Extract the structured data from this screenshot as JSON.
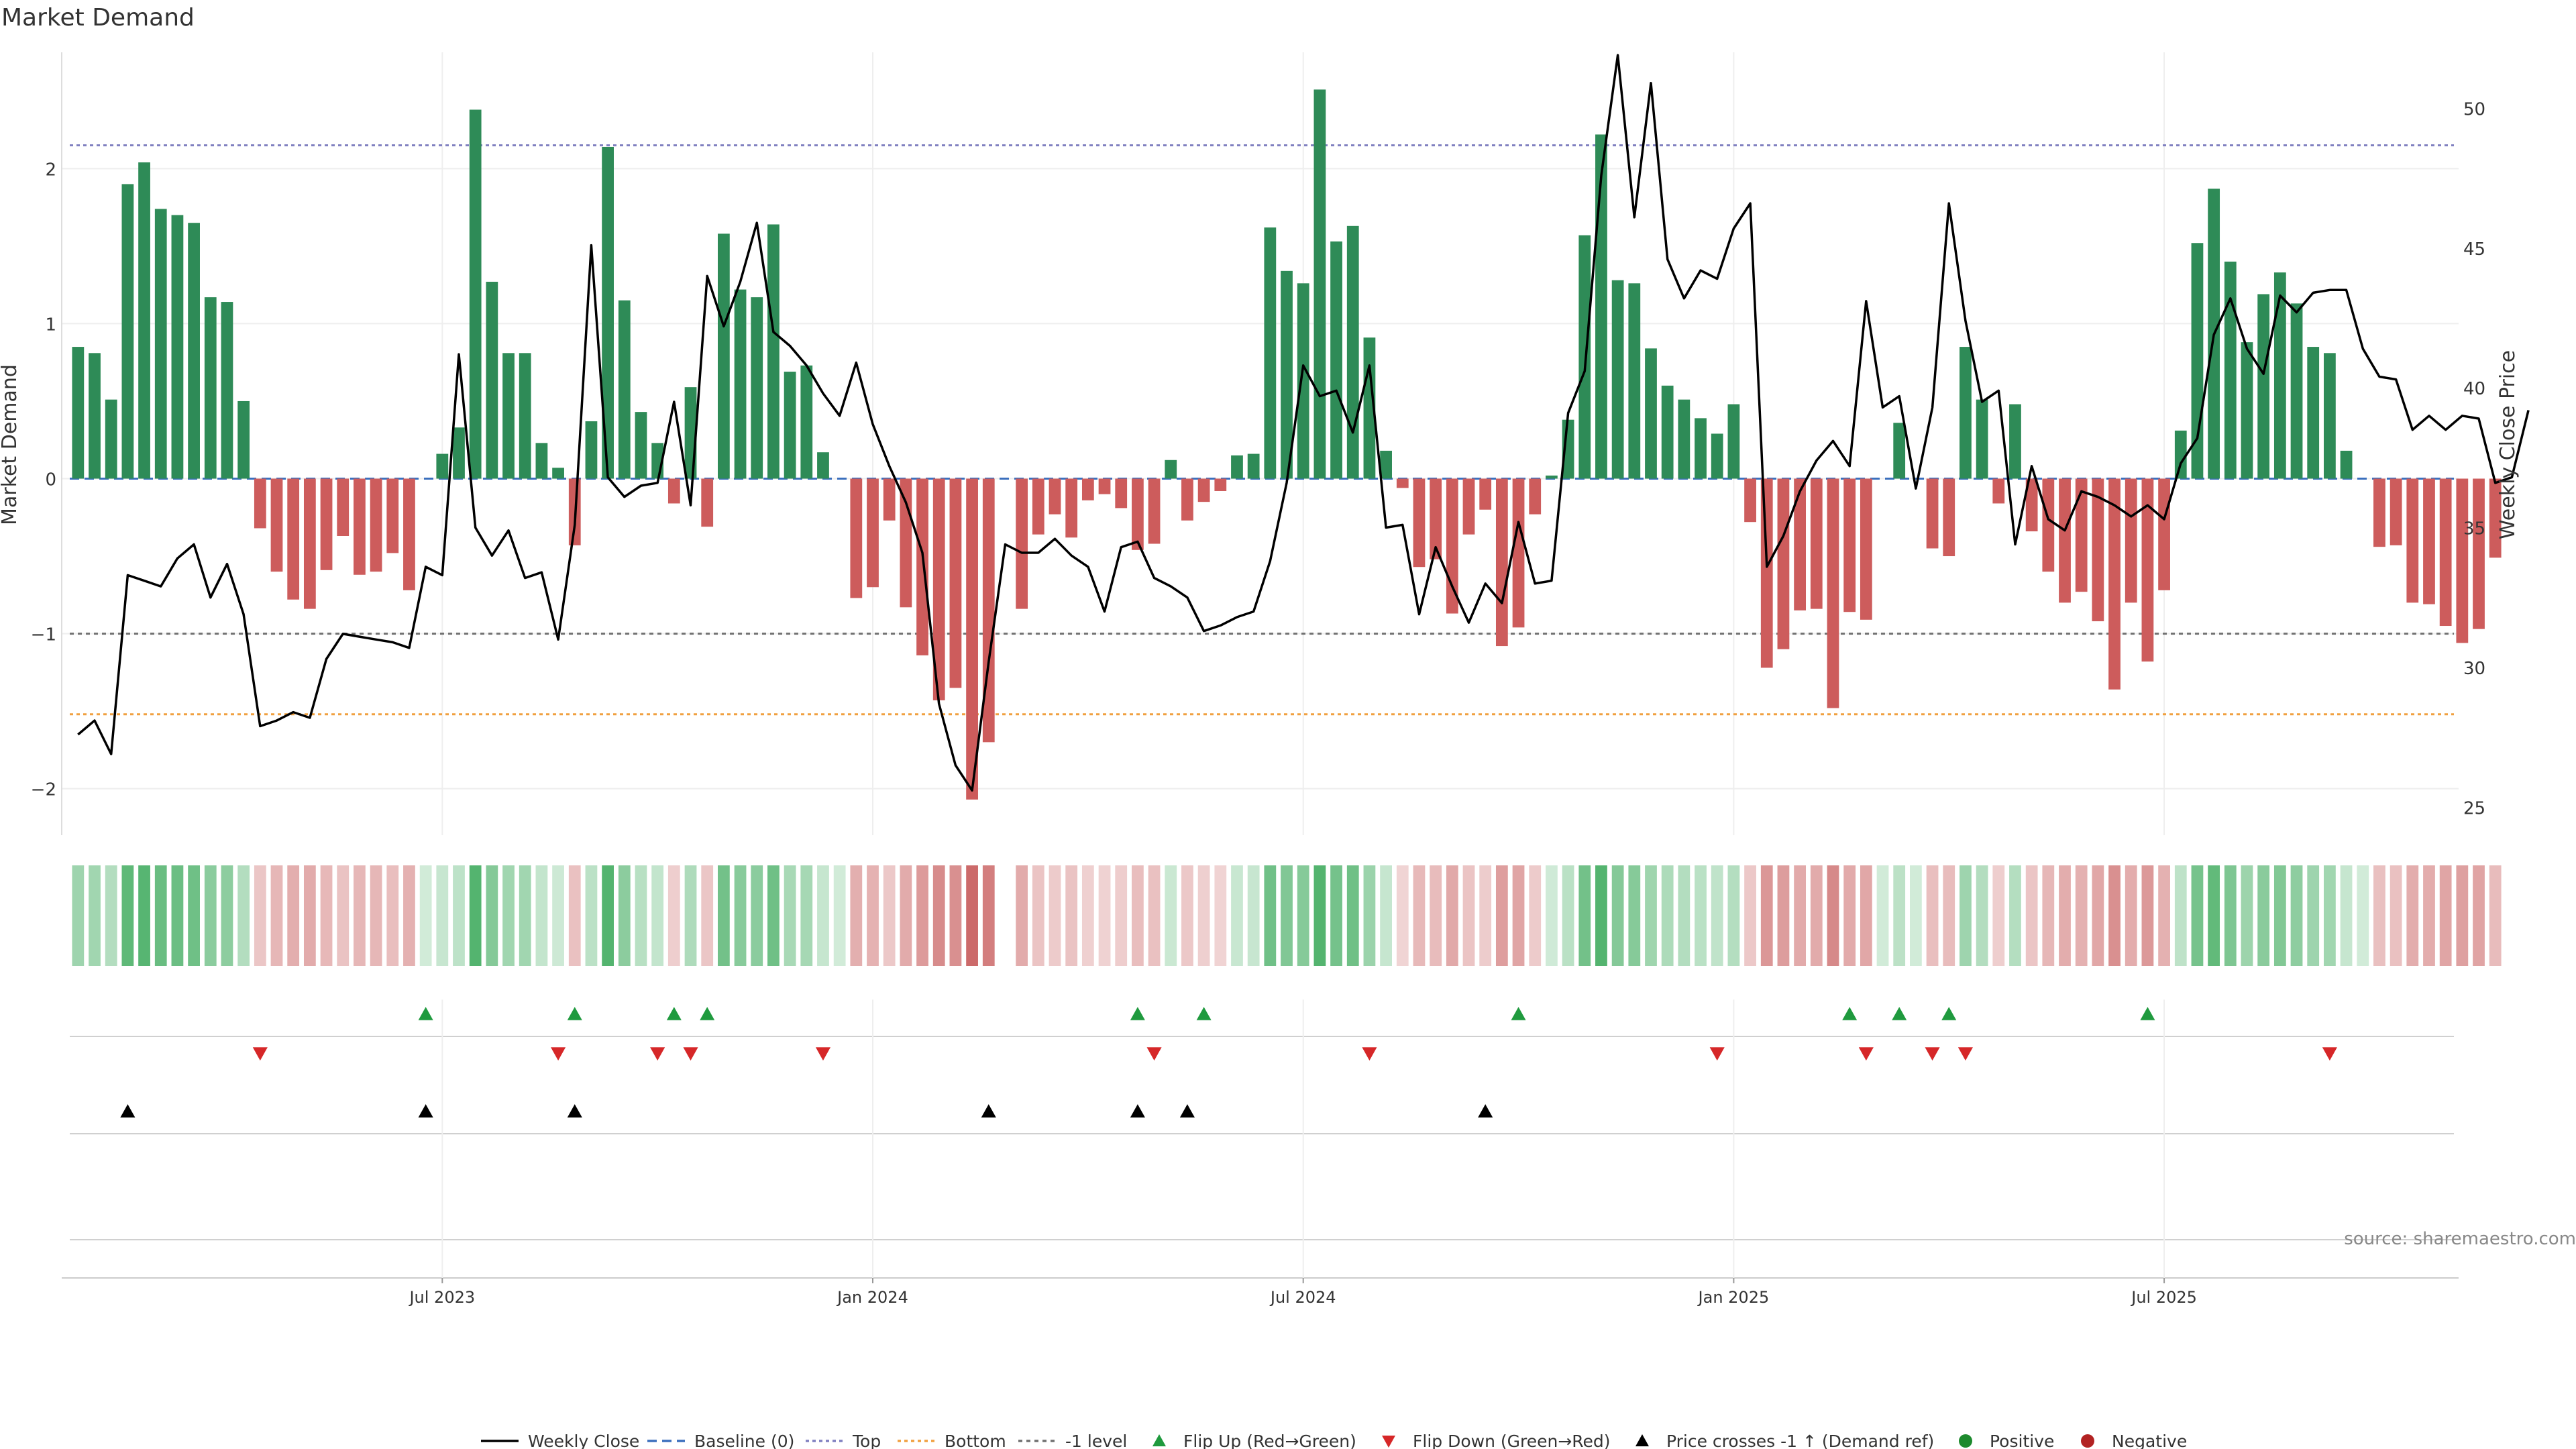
{
  "chart_data": {
    "type": "bar",
    "title": "Market Demand",
    "ylabel_left": "Market Demand",
    "ylabel_right": "Weekly Close Price",
    "ylim_left": [
      -2.3,
      2.75
    ],
    "ylim_right": [
      24,
      52
    ],
    "left_ticks": [
      {
        "v": 2,
        "label": "2"
      },
      {
        "v": 1,
        "label": "1"
      },
      {
        "v": 0,
        "label": "0"
      },
      {
        "v": -1,
        "label": "−1"
      },
      {
        "v": -2,
        "label": "−2"
      }
    ],
    "right_ticks": [
      {
        "v": 50,
        "label": "50"
      },
      {
        "v": 45,
        "label": "45"
      },
      {
        "v": 40,
        "label": "40"
      },
      {
        "v": 35,
        "label": "35"
      },
      {
        "v": 30,
        "label": "30"
      },
      {
        "v": 25,
        "label": "25"
      }
    ],
    "reference_lines": {
      "top": 2.15,
      "bottom": -1.52,
      "minus_one": -1.0,
      "baseline": 0
    },
    "x_ticks": [
      {
        "i": 22,
        "label": "Jul 2023"
      },
      {
        "i": 48,
        "label": "Jan 2024"
      },
      {
        "i": 74,
        "label": "Jul 2024"
      },
      {
        "i": 100,
        "label": "Jan 2025"
      },
      {
        "i": 126,
        "label": "Jul 2025"
      }
    ],
    "weeks": 144,
    "series": [
      {
        "name": "Market Demand",
        "values": [
          0.85,
          0.81,
          0.51,
          1.9,
          2.04,
          1.74,
          1.7,
          1.65,
          1.17,
          1.14,
          0.5,
          -0.32,
          -0.6,
          -0.78,
          -0.84,
          -0.59,
          -0.37,
          -0.62,
          -0.6,
          -0.48,
          -0.72,
          0.0,
          0.16,
          0.33,
          2.38,
          1.27,
          0.81,
          0.81,
          0.23,
          0.07,
          -0.43,
          0.37,
          2.14,
          1.15,
          0.43,
          0.23,
          -0.16,
          0.59,
          -0.31,
          1.58,
          1.22,
          1.17,
          1.64,
          0.69,
          0.73,
          0.17,
          0.0,
          -0.77,
          -0.7,
          -0.27,
          -0.83,
          -1.14,
          -1.43,
          -1.35,
          -2.07,
          -1.7,
          null,
          -0.84,
          -0.36,
          -0.23,
          -0.38,
          -0.14,
          -0.1,
          -0.19,
          -0.46,
          -0.42,
          0.12,
          -0.27,
          -0.15,
          -0.08,
          0.15,
          0.16,
          1.62,
          1.34,
          1.26,
          2.51,
          1.53,
          1.63,
          0.91,
          0.18,
          -0.06,
          -0.57,
          -0.52,
          -0.87,
          -0.36,
          -0.2,
          -1.08,
          -0.96,
          -0.23,
          0.02,
          0.38,
          1.57,
          2.22,
          1.28,
          1.26,
          0.84,
          0.6,
          0.51,
          0.39,
          0.29,
          0.48,
          -0.28,
          -1.22,
          -1.1,
          -0.85,
          -0.84,
          -1.48,
          -0.86,
          -0.91,
          0.0,
          0.36,
          0.0,
          -0.45,
          -0.5,
          0.85,
          0.51,
          -0.16,
          0.48,
          -0.34,
          -0.6,
          -0.8,
          -0.73,
          -0.92,
          -1.36,
          -0.8,
          -1.18,
          -0.72,
          0.31,
          1.52,
          1.87,
          1.4,
          0.88,
          1.19,
          1.33,
          1.13,
          0.85,
          0.81,
          0.18,
          0.0,
          -0.44,
          -0.43,
          -0.8,
          -0.81,
          -0.95,
          -1.06,
          -0.97,
          -0.51
        ]
      },
      {
        "name": "Weekly Close",
        "values": [
          27.6,
          28.1,
          26.9,
          33.3,
          33.1,
          32.9,
          33.9,
          34.4,
          32.5,
          33.7,
          31.9,
          27.9,
          28.1,
          28.4,
          28.2,
          30.3,
          31.2,
          31.1,
          31.0,
          30.9,
          30.7,
          33.6,
          33.3,
          41.2,
          35.0,
          34.0,
          34.9,
          33.2,
          33.4,
          31.0,
          35.1,
          45.1,
          36.8,
          36.1,
          36.5,
          36.6,
          39.5,
          35.8,
          44.0,
          42.2,
          43.8,
          45.9,
          42.0,
          41.5,
          40.8,
          39.8,
          39.0,
          40.9,
          38.7,
          37.2,
          35.9,
          34.1,
          28.7,
          26.5,
          25.6,
          30.2,
          34.4,
          34.1,
          34.1,
          34.6,
          34.0,
          33.6,
          32.0,
          34.3,
          34.5,
          33.2,
          32.9,
          32.5,
          31.3,
          31.5,
          31.8,
          32.0,
          33.8,
          36.6,
          40.8,
          39.7,
          39.9,
          38.4,
          40.8,
          35.0,
          35.1,
          31.9,
          34.3,
          32.9,
          31.6,
          33.0,
          32.3,
          35.2,
          33.0,
          33.1,
          39.1,
          40.6,
          47.6,
          51.9,
          46.1,
          50.9,
          44.6,
          43.2,
          44.2,
          43.9,
          45.7,
          46.6,
          33.6,
          34.7,
          36.3,
          37.4,
          38.1,
          37.2,
          43.1,
          39.3,
          39.7,
          36.4,
          39.3,
          46.6,
          42.4,
          39.5,
          39.9,
          34.4,
          37.2,
          35.3,
          34.9,
          36.3,
          36.1,
          35.8,
          35.4,
          35.8,
          35.3,
          37.3,
          38.2,
          41.9,
          43.2,
          41.4,
          40.5,
          43.3,
          42.7,
          43.4,
          43.5,
          43.5,
          41.4,
          40.4,
          40.3,
          38.5,
          39.0,
          38.5,
          39.0,
          38.9,
          36.6,
          36.8,
          39.2
        ]
      }
    ],
    "flip_up_weeks": [
      21,
      30,
      36,
      38,
      64,
      68,
      87,
      107,
      110,
      113,
      125
    ],
    "flip_down_weeks": [
      11,
      29,
      35,
      37,
      45,
      65,
      78,
      99,
      108,
      112,
      114,
      136
    ],
    "price_cross_weeks": [
      3,
      21,
      30,
      55,
      64,
      67,
      85
    ],
    "legend": [
      "Weekly Close",
      "Baseline (0)",
      "Top",
      "Bottom",
      "-1 level",
      "Flip Up (Red→Green)",
      "Flip Down (Green→Red)",
      "Price crosses -1 ↑ (Demand ref)",
      "Positive",
      "Negative"
    ],
    "source": "source: sharemaestro.com",
    "colors": {
      "positive": "#2e8b57",
      "negative": "#cd5c5c",
      "strip_pos": "#2ea34f",
      "strip_neg": "#c04848",
      "flip_up": "#1f9a3e",
      "flip_down": "#d62728",
      "cross": "#000000",
      "legend_pos": "#1e8a2e",
      "legend_neg": "#b22222",
      "top": "#8080c0",
      "bottom": "#f0a040",
      "minus_one": "#707070",
      "baseline": "#3b6fbd"
    }
  }
}
